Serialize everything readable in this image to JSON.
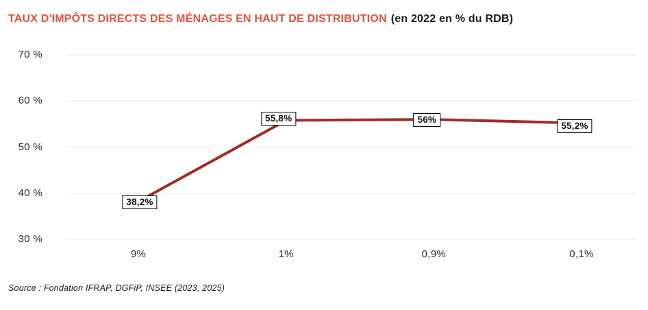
{
  "title": {
    "main": "TAUX D'IMPÔTS DIRECTS DES MÉNAGES EN HAUT DE DISTRIBUTION",
    "suffix": "(en 2022 en % du RDB)"
  },
  "source": "Source : Fondation IFRAP, DGFiP, INSEE (2023, 2025)",
  "colors": {
    "title_accent": "#E5513C",
    "text": "#2B2B2B",
    "line": "#A12C26",
    "gridline": "#E9E4DD",
    "label_box_bg": "#FFFFFF",
    "label_box_border": "#000000"
  },
  "chart_data": {
    "type": "line",
    "title": "TAUX D'IMPÔTS DIRECTS DES MÉNAGES EN HAUT DE DISTRIBUTION (en 2022 en % du RDB)",
    "categories": [
      "9%",
      "1%",
      "0,9%",
      "0,1%"
    ],
    "values": [
      38.2,
      55.8,
      56,
      55.2
    ],
    "value_labels": [
      "38,2%",
      "55,8%",
      "56%",
      "55,2%"
    ],
    "y_ticks": [
      {
        "value": 70,
        "label": "70 %"
      },
      {
        "value": 60,
        "label": "60 %"
      },
      {
        "value": 50,
        "label": "50 %"
      },
      {
        "value": 40,
        "label": "40 %"
      },
      {
        "value": 30,
        "label": "30 %"
      }
    ],
    "ylim": [
      30,
      70
    ],
    "xlabel": "",
    "ylabel": "",
    "grid": "horizontal",
    "legend": "none",
    "line_width": 4,
    "data_labels": "boxed"
  }
}
